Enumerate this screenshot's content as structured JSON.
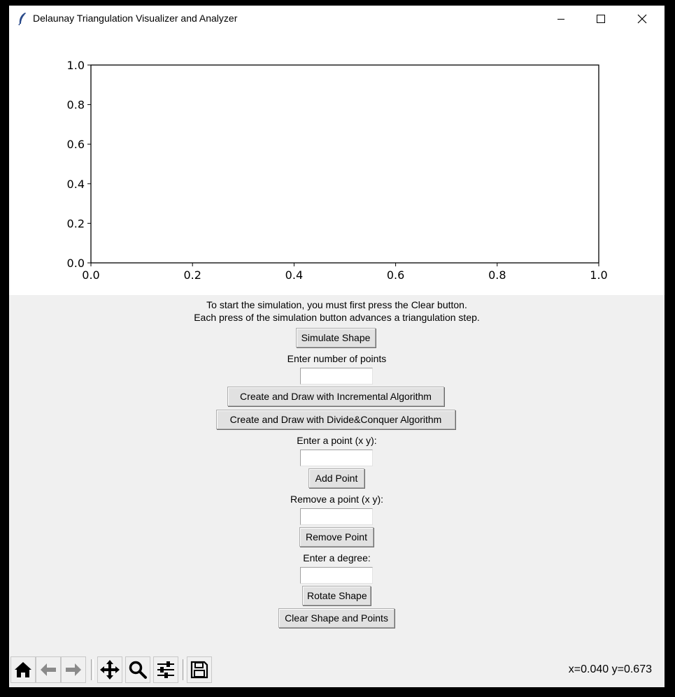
{
  "window": {
    "title": "Delaunay Triangulation Visualizer and Analyzer"
  },
  "chart_data": {
    "type": "scatter",
    "series": [],
    "xlim": [
      0.0,
      1.0
    ],
    "ylim": [
      0.0,
      1.0
    ],
    "xticks": [
      "0.0",
      "0.2",
      "0.4",
      "0.6",
      "0.8",
      "1.0"
    ],
    "yticks": [
      "0.0",
      "0.2",
      "0.4",
      "0.6",
      "0.8",
      "1.0"
    ],
    "title": "",
    "xlabel": "",
    "ylabel": "",
    "grid": false
  },
  "controls": {
    "instructions_line1": "To start the simulation, you must first press the Clear button.",
    "instructions_line2": "Each press of the simulation button advances a triangulation step.",
    "simulate_label": "Simulate Shape",
    "num_points_label": "Enter number of points",
    "num_points_value": "",
    "incremental_label": "Create and Draw with Incremental Algorithm",
    "divide_conquer_label": "Create and Draw with Divide&Conquer Algorithm",
    "add_point_label_text": "Enter a point (x y):",
    "add_point_value": "",
    "add_point_button": "Add Point",
    "remove_point_label_text": "Remove a point (x y):",
    "remove_point_value": "",
    "remove_point_button": "Remove Point",
    "degree_label_text": "Enter a degree:",
    "degree_value": "",
    "rotate_button": "Rotate Shape",
    "clear_button": "Clear Shape and Points"
  },
  "toolbar": {
    "icons": [
      "home-icon",
      "back-icon",
      "forward-icon",
      "pan-icon",
      "zoom-icon",
      "configure-subplots-icon",
      "save-icon"
    ],
    "coords": "x=0.040 y=0.673"
  }
}
